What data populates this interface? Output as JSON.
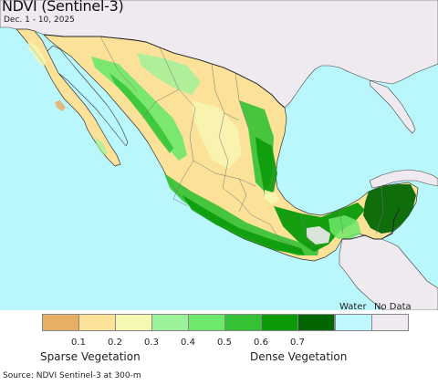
{
  "title": "NDVI (Sentinel-3)",
  "subtitle": "Dec. 1 - 10, 2025",
  "legend": {
    "classes": [
      {
        "color": "#e8ae66"
      },
      {
        "color": "#fce199"
      },
      {
        "color": "#f6f7b3"
      },
      {
        "color": "#9bf29a"
      },
      {
        "color": "#6ee86a"
      },
      {
        "color": "#34c234"
      },
      {
        "color": "#0a9a0a"
      },
      {
        "color": "#036603"
      }
    ],
    "tick_labels": [
      "0.1",
      "0.2",
      "0.3",
      "0.4",
      "0.5",
      "0.6",
      "0.7"
    ],
    "water_label": "Water",
    "water_color": "#bff6ff",
    "nodata_label": "No Data",
    "nodata_color": "#efeaf0",
    "sparse_label": "Sparse Vegetation",
    "dense_label": "Dense Vegetation"
  },
  "source": "Source: NDVI Sentinel-3 at 300-m",
  "colors": {
    "ocean": "#b9f7fc",
    "land_outside": "#efeaf0",
    "border": "#333333",
    "state_border": "#777777"
  }
}
